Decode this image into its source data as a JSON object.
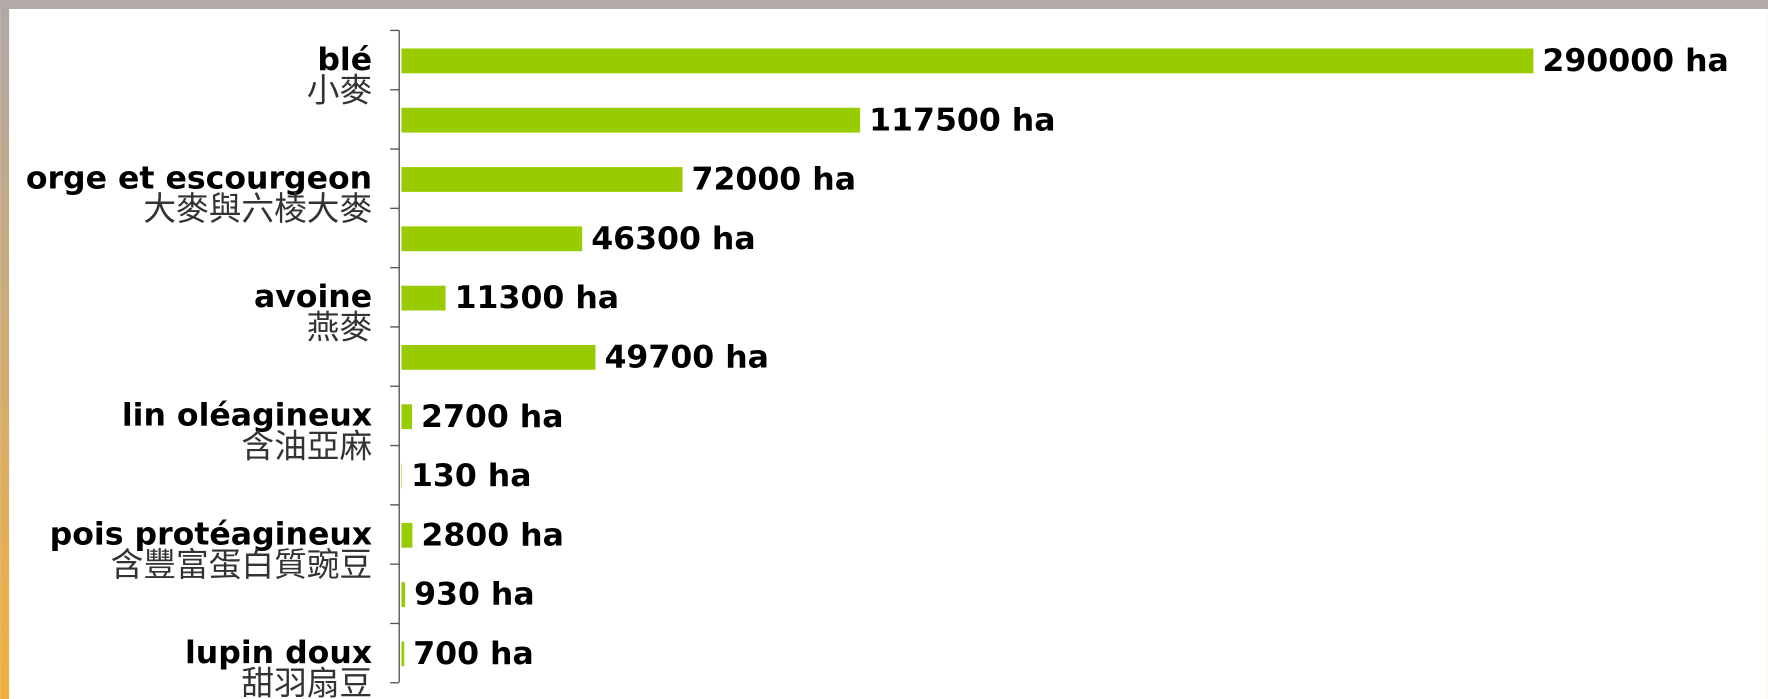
{
  "chart_data": {
    "type": "bar",
    "orientation": "horizontal",
    "color": "#99cc00",
    "groups": [
      {
        "labels": [
          "blé",
          "小麥"
        ],
        "values": [
          290000,
          117500
        ],
        "value_labels": [
          "290000 ha",
          "117500 ha"
        ]
      },
      {
        "labels": [
          "orge et escourgeon",
          "大麥與六棱大麥"
        ],
        "values": [
          72000,
          46300
        ],
        "value_labels": [
          "72000 ha",
          "46300 ha"
        ]
      },
      {
        "labels": [
          "avoine",
          "燕麥"
        ],
        "values": [
          11300,
          49700
        ],
        "value_labels": [
          "11300 ha",
          "49700 ha"
        ]
      },
      {
        "labels": [
          "lin oléagineux",
          "含油亞麻"
        ],
        "values": [
          2700,
          130
        ],
        "value_labels": [
          "2700 ha",
          "130 ha"
        ]
      },
      {
        "labels": [
          "pois protéagineux",
          "含豐富蛋白質豌豆"
        ],
        "values": [
          2800,
          930
        ],
        "value_labels": [
          "2800 ha",
          "930 ha"
        ]
      },
      {
        "labels": [
          "lupin doux",
          "甜羽扇豆"
        ],
        "values": [
          700
        ],
        "value_labels": [
          "700 ha"
        ]
      }
    ]
  }
}
